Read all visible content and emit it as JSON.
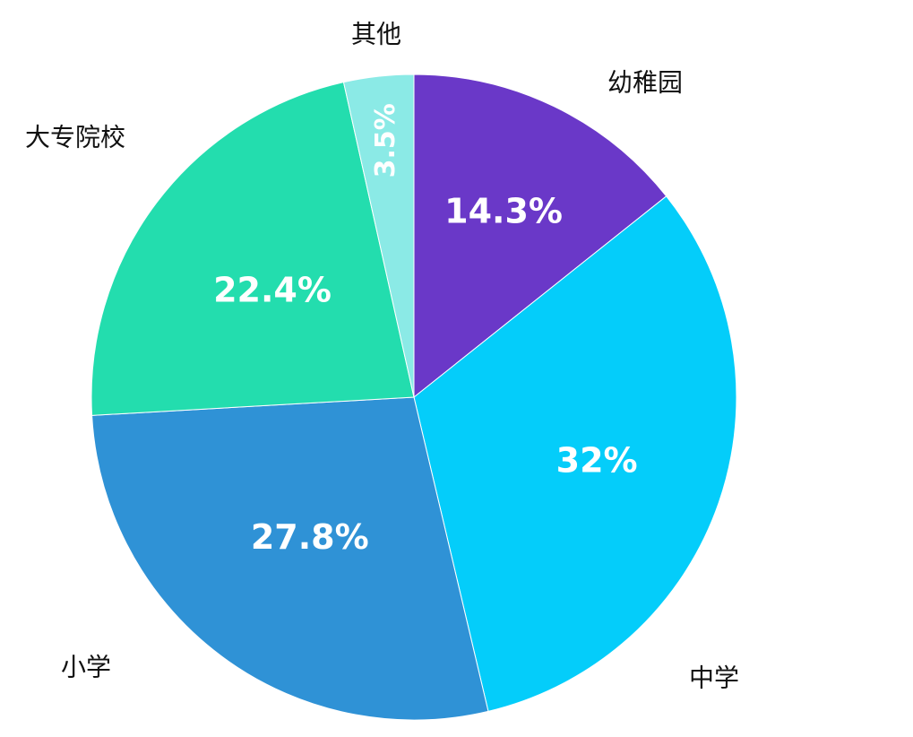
{
  "chart_data": {
    "type": "pie",
    "title": "",
    "legend": "none",
    "slices": [
      {
        "label": "幼稚园",
        "value": 14.3,
        "value_label": "14.3%",
        "color": "#6a38c8"
      },
      {
        "label": "中学",
        "value": 32,
        "value_label": "32%",
        "color": "#04cdfa"
      },
      {
        "label": "小学",
        "value": 27.8,
        "value_label": "27.8%",
        "color": "#2f92d6"
      },
      {
        "label": "大专院校",
        "value": 22.4,
        "value_label": "22.4%",
        "color": "#23ddae"
      },
      {
        "label": "其他",
        "value": 3.5,
        "value_label": "3.5%",
        "color": "#8beae6"
      }
    ]
  }
}
